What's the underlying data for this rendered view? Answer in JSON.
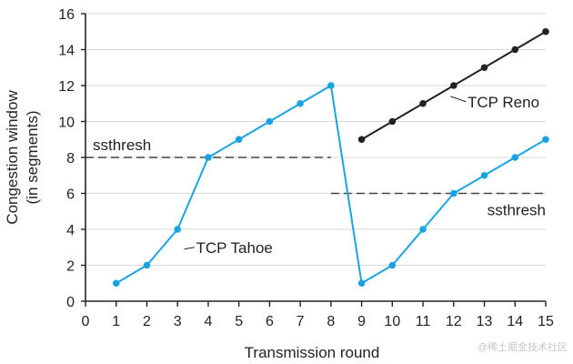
{
  "chart_data": {
    "type": "line",
    "title": "",
    "xlabel": "Transmission round",
    "ylabel": [
      "Congestion window",
      "(in segments)"
    ],
    "xlim": [
      0,
      15
    ],
    "ylim": [
      0,
      16
    ],
    "x_ticks": [
      0,
      1,
      2,
      3,
      4,
      5,
      6,
      7,
      8,
      9,
      10,
      11,
      12,
      13,
      14,
      15
    ],
    "y_ticks": [
      0,
      2,
      4,
      6,
      8,
      10,
      12,
      14,
      16
    ],
    "grid": "horizontal",
    "series": [
      {
        "name": "TCP Tahoe",
        "color": "#1aa3e3",
        "points": [
          [
            1,
            1
          ],
          [
            2,
            2
          ],
          [
            3,
            4
          ],
          [
            4,
            8
          ],
          [
            5,
            9
          ],
          [
            6,
            10
          ],
          [
            7,
            11
          ],
          [
            8,
            12
          ],
          [
            9,
            1
          ],
          [
            10,
            2
          ],
          [
            11,
            4
          ],
          [
            12,
            6
          ],
          [
            13,
            7
          ],
          [
            14,
            8
          ],
          [
            15,
            9
          ]
        ]
      },
      {
        "name": "TCP Reno",
        "color": "#222222",
        "points": [
          [
            9,
            9
          ],
          [
            10,
            10
          ],
          [
            11,
            11
          ],
          [
            12,
            12
          ],
          [
            13,
            13
          ],
          [
            14,
            14
          ],
          [
            15,
            15
          ]
        ]
      }
    ],
    "reference_lines": [
      {
        "label": "ssthresh",
        "y": 8,
        "x_range": [
          0,
          8
        ]
      },
      {
        "label": "ssthresh",
        "y": 6,
        "x_range": [
          8,
          15
        ]
      }
    ]
  },
  "watermark": "@稀土掘金技术社区"
}
